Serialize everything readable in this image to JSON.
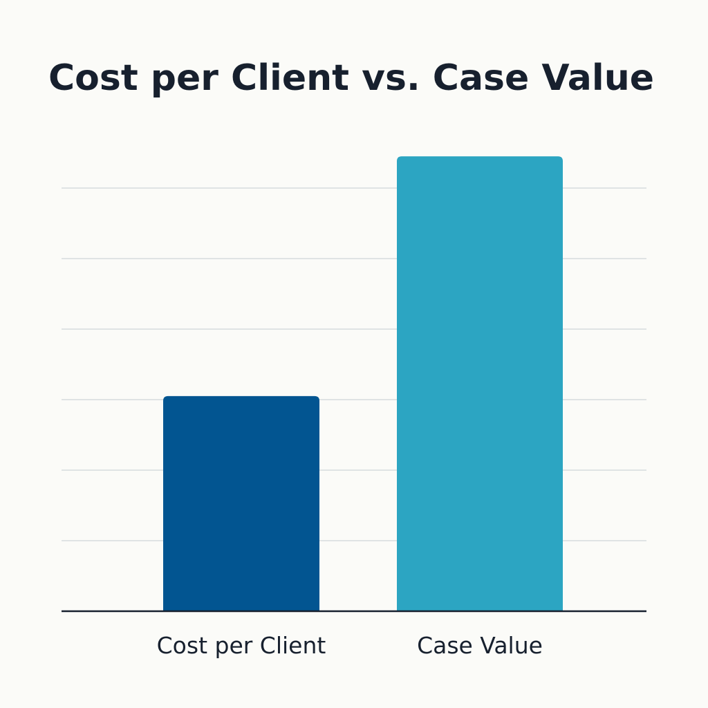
{
  "chart_data": {
    "type": "bar",
    "title": "Cost per Client vs. Case Value",
    "categories": [
      "Cost per Client",
      "Case Value"
    ],
    "values": [
      30.5,
      64.5
    ],
    "colors": [
      "#025591",
      "#2ca5c2"
    ],
    "xlabel": "",
    "ylabel": "",
    "ylim": [
      0,
      70
    ],
    "gridlines": [
      10,
      20,
      30,
      40,
      50,
      60
    ],
    "grid": true,
    "legend": "none"
  }
}
